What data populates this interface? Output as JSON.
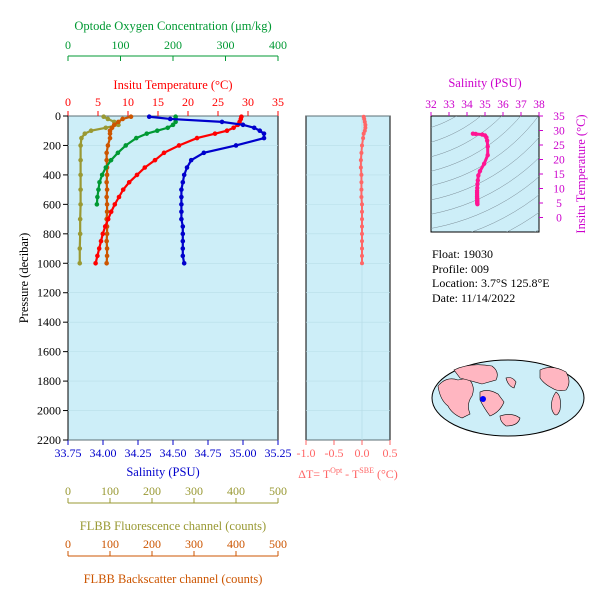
{
  "colors": {
    "panel_bg": "#cdeef8",
    "temperature": "#ff0000",
    "salinity": "#0000cc",
    "oxygen": "#009933",
    "fluorescence": "#999933",
    "backscatter": "#cc5500",
    "delta_t": "#ff6666",
    "ts_axis": "#cc00cc",
    "ts_curve": "#ff1493"
  },
  "info": {
    "float": "Float:  19030",
    "profile": "Profile:  009",
    "location": "Location:  3.7°S  125.8°E",
    "date": "Date:  11/14/2022"
  },
  "chart_data": [
    {
      "type": "line",
      "panel": "main-profile",
      "ylabel": "Pressure (decibar)",
      "ylim": [
        2200,
        0
      ],
      "yticks": [
        0,
        200,
        400,
        600,
        800,
        1000,
        1200,
        1400,
        1600,
        1800,
        2000,
        2200
      ],
      "axes": {
        "oxygen": {
          "title": "Optode Oxygen Concentration (μm/kg)",
          "lim": [
            0,
            400
          ],
          "ticks": [
            0,
            100,
            200,
            300,
            400
          ],
          "tick_labels": [
            "0",
            "100",
            "200",
            "300",
            "400"
          ]
        },
        "temperature": {
          "title": "Insitu Temperature (°C)",
          "lim": [
            0,
            35
          ],
          "ticks": [
            0,
            5,
            10,
            15,
            20,
            25,
            30,
            35
          ],
          "tick_labels": [
            "0",
            "5",
            "10",
            "15",
            "20",
            "25",
            "30",
            "35"
          ]
        },
        "salinity": {
          "title": "Salinity (PSU)",
          "lim": [
            33.75,
            35.25
          ],
          "ticks": [
            33.75,
            34.0,
            34.25,
            34.5,
            34.75,
            35.0,
            35.25
          ],
          "tick_labels": [
            "33.75",
            "34.00",
            "34.25",
            "34.50",
            "34.75",
            "35.00",
            "35.25"
          ]
        },
        "fluorescence": {
          "title": "FLBB Fluorescence channel (counts)",
          "lim": [
            0,
            500
          ],
          "ticks": [
            0,
            100,
            200,
            300,
            400,
            500
          ],
          "tick_labels": [
            "0",
            "100",
            "200",
            "300",
            "400",
            "500"
          ]
        },
        "backscatter": {
          "title": "FLBB Backscatter channel (counts)",
          "lim": [
            0,
            500
          ],
          "ticks": [
            0,
            100,
            200,
            300,
            400,
            500
          ],
          "tick_labels": [
            "0",
            "100",
            "200",
            "300",
            "400",
            "500"
          ]
        }
      },
      "series": [
        {
          "key": "temperature",
          "pressure": [
            5,
            20,
            40,
            60,
            80,
            100,
            120,
            150,
            200,
            250,
            300,
            350,
            400,
            450,
            500,
            550,
            600,
            650,
            700,
            750,
            800,
            850,
            900,
            950,
            1000
          ],
          "values": [
            28.9,
            28.8,
            28.6,
            28.3,
            27.6,
            26.5,
            24.5,
            21.5,
            18.5,
            16.0,
            14.5,
            12.8,
            11.5,
            10.2,
            9.2,
            8.5,
            7.8,
            7.2,
            6.7,
            6.2,
            5.8,
            5.5,
            5.2,
            4.9,
            4.6
          ]
        },
        {
          "key": "salinity",
          "pressure": [
            5,
            20,
            40,
            60,
            80,
            100,
            120,
            150,
            200,
            250,
            300,
            350,
            400,
            450,
            500,
            550,
            600,
            650,
            700,
            750,
            800,
            850,
            900,
            950,
            1000
          ],
          "values": [
            34.33,
            34.48,
            34.85,
            35.0,
            35.08,
            35.12,
            35.15,
            35.15,
            34.95,
            34.72,
            34.63,
            34.6,
            34.58,
            34.57,
            34.56,
            34.56,
            34.56,
            34.56,
            34.56,
            34.57,
            34.57,
            34.57,
            34.57,
            34.57,
            34.58
          ]
        },
        {
          "key": "oxygen",
          "pressure": [
            5,
            20,
            40,
            60,
            80,
            100,
            120,
            150,
            200,
            250,
            300,
            350,
            400,
            450,
            500,
            550,
            600
          ],
          "values": [
            205,
            205,
            205,
            200,
            190,
            170,
            150,
            130,
            110,
            95,
            82,
            72,
            65,
            60,
            58,
            56,
            55
          ]
        },
        {
          "key": "fluorescence",
          "pressure": [
            5,
            20,
            40,
            60,
            80,
            100,
            120,
            150,
            200,
            300,
            400,
            500,
            600,
            700,
            800,
            900,
            1000
          ],
          "values": [
            85,
            95,
            110,
            120,
            90,
            55,
            40,
            32,
            30,
            30,
            30,
            30,
            30,
            29,
            29,
            28,
            28
          ]
        },
        {
          "key": "backscatter",
          "pressure": [
            5,
            20,
            40,
            60,
            80,
            100,
            120,
            150,
            200,
            250,
            300,
            350,
            400,
            450,
            500,
            550,
            600,
            650,
            700,
            750,
            800,
            850,
            900,
            950,
            1000
          ],
          "values": [
            150,
            130,
            120,
            110,
            105,
            100,
            100,
            100,
            95,
            92,
            92,
            93,
            93,
            92,
            93,
            92,
            93,
            93,
            92,
            93,
            93,
            92,
            93,
            93,
            92
          ]
        }
      ]
    },
    {
      "type": "line",
      "panel": "delta-t",
      "xlabel": "ΔT= T^Opt - T^SBE (°C)",
      "xlim": [
        -1.0,
        0.5
      ],
      "xticks": [
        -1.0,
        -0.5,
        0.0,
        0.5
      ],
      "xtick_labels": [
        "-1.0",
        "-0.5",
        "0.0",
        "0.5"
      ],
      "ylim": [
        2200,
        0
      ],
      "series": [
        {
          "key": "delta_t",
          "pressure": [
            5,
            20,
            40,
            60,
            80,
            100,
            120,
            150,
            200,
            250,
            300,
            350,
            400,
            450,
            500,
            550,
            600,
            650,
            700,
            750,
            800,
            850,
            900,
            950,
            1000
          ],
          "values": [
            0.03,
            0.04,
            0.05,
            0.06,
            0.06,
            0.05,
            0.03,
            0.02,
            0.0,
            -0.01,
            -0.02,
            -0.02,
            -0.01,
            -0.01,
            -0.01,
            -0.01,
            0.0,
            0.0,
            0.0,
            0.0,
            0.0,
            0.0,
            0.0,
            0.0,
            0.0
          ]
        }
      ]
    },
    {
      "type": "scatter",
      "panel": "ts-diagram",
      "title": "Salinity (PSU)",
      "ylabel": "Insitu Temperature (°C)",
      "xlim": [
        32,
        38
      ],
      "xticks": [
        32,
        33,
        34,
        35,
        36,
        37,
        38
      ],
      "xtick_labels": [
        "32",
        "33",
        "34",
        "35",
        "36",
        "37",
        "38"
      ],
      "ylim": [
        -5,
        35
      ],
      "yticks": [
        0,
        5,
        10,
        15,
        20,
        25,
        30,
        35
      ],
      "ytick_labels": [
        "0",
        "5",
        "10",
        "15",
        "20",
        "25",
        "30",
        "35"
      ],
      "series": [
        {
          "key": "ts",
          "salinity": [
            34.33,
            34.48,
            34.85,
            35.0,
            35.08,
            35.12,
            35.15,
            35.15,
            34.95,
            34.72,
            34.63,
            34.6,
            34.58,
            34.57,
            34.56,
            34.56,
            34.56,
            34.56,
            34.56,
            34.57,
            34.57,
            34.57,
            34.57,
            34.57,
            34.58
          ],
          "temperature": [
            28.9,
            28.8,
            28.6,
            28.3,
            27.6,
            26.5,
            24.5,
            21.5,
            18.5,
            16.0,
            14.5,
            12.8,
            11.5,
            10.2,
            9.2,
            8.5,
            7.8,
            7.2,
            6.7,
            6.2,
            5.8,
            5.5,
            5.2,
            4.9,
            4.6
          ]
        }
      ]
    }
  ]
}
